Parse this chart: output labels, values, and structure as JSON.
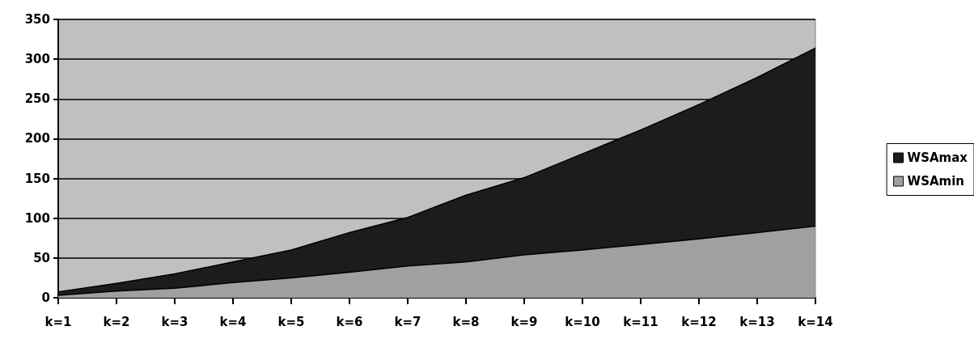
{
  "chart_data": {
    "type": "area",
    "categories": [
      "k=1",
      "k=2",
      "k=3",
      "k=4",
      "k=5",
      "k=6",
      "k=7",
      "k=8",
      "k=9",
      "k=10",
      "k=11",
      "k=12",
      "k=13",
      "k=14"
    ],
    "series": [
      {
        "name": "WSAmax",
        "color": "#1c1c1c",
        "values": [
          7.5,
          18,
          30,
          45,
          60,
          82,
          101,
          129,
          151,
          181,
          211,
          243,
          277,
          314
        ]
      },
      {
        "name": "WSAmin",
        "color": "#a0a0a0",
        "values": [
          3,
          8.5,
          12,
          19,
          25,
          32,
          40,
          45,
          54,
          60,
          67,
          74,
          82,
          90
        ]
      }
    ],
    "ylim": [
      0,
      350
    ],
    "yticks": [
      0,
      50,
      100,
      150,
      200,
      250,
      300,
      350
    ],
    "grid": "y",
    "legend": "right"
  }
}
